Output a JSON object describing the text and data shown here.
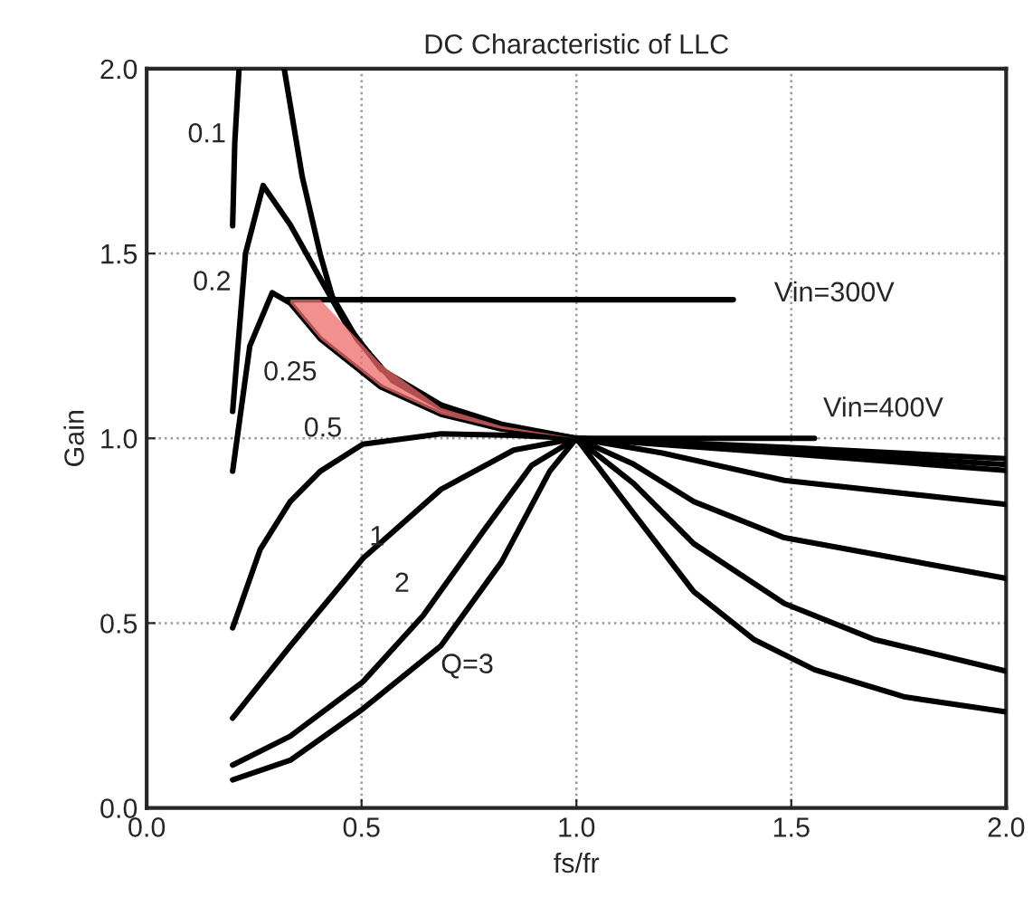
{
  "chart_data": {
    "type": "line",
    "title": "DC Characteristic of LLC",
    "xlabel": "fs/fr",
    "ylabel": "Gain",
    "xlim": [
      0,
      2
    ],
    "ylim": [
      0,
      2
    ],
    "xticks": [
      {
        "value": 0,
        "label": "0.0"
      },
      {
        "value": 0.5,
        "label": "0.5"
      },
      {
        "value": 1,
        "label": "1.0"
      },
      {
        "value": 1.5,
        "label": "1.5"
      },
      {
        "value": 2,
        "label": "2.0"
      }
    ],
    "yticks": [
      {
        "value": 0,
        "label": "0.0"
      },
      {
        "value": 0.5,
        "label": "0.5"
      },
      {
        "value": 1,
        "label": "1.0"
      },
      {
        "value": 1.5,
        "label": "1.5"
      },
      {
        "value": 2,
        "label": "2.0"
      }
    ],
    "grid": true,
    "series": [
      {
        "name": "0.1",
        "color": "#000000",
        "x": [
          0.2,
          0.205,
          0.215,
          0.26,
          0.32,
          0.362,
          0.404,
          0.432,
          0.489,
          0.573,
          0.685,
          0.826,
          1.0,
          1.5,
          2.0
        ],
        "values": [
          1.575,
          1.8,
          2.0,
          null,
          2.0,
          1.708,
          1.497,
          1.383,
          1.269,
          1.155,
          1.082,
          1.033,
          1.0,
          0.975,
          0.945
        ]
      },
      {
        "name": "0.2",
        "color": "#000000",
        "x": [
          0.2,
          0.23,
          0.271,
          0.334,
          0.404,
          0.46,
          0.545,
          0.685,
          0.826,
          1.0,
          1.5,
          2.0
        ],
        "values": [
          1.073,
          1.5,
          1.684,
          1.578,
          1.432,
          1.317,
          1.187,
          1.09,
          1.038,
          1.0,
          0.966,
          0.929
        ]
      },
      {
        "name": "0.25",
        "color": "#000000",
        "x": [
          0.2,
          0.24,
          0.292,
          0.334,
          0.404,
          0.545,
          0.685,
          0.826,
          1.0,
          1.5,
          2.0
        ],
        "values": [
          0.911,
          1.25,
          1.394,
          1.366,
          1.269,
          1.139,
          1.065,
          1.025,
          1.0,
          0.958,
          0.913
        ],
        "lower": [
          null,
          null,
          null,
          1.366,
          1.269,
          1.139,
          1.065,
          1.025,
          1.0,
          null,
          null
        ],
        "upper": [
          null,
          null,
          null,
          1.375,
          1.375,
          1.2,
          1.082,
          1.033,
          1.0,
          null,
          null
        ]
      },
      {
        "name": "0.5",
        "color": "#000000",
        "x": [
          0.2,
          0.264,
          0.334,
          0.404,
          0.503,
          0.685,
          0.854,
          1.0,
          1.2,
          1.484,
          2.0
        ],
        "values": [
          0.487,
          0.699,
          0.829,
          0.911,
          0.984,
          1.012,
          1.008,
          1.0,
          0.96,
          0.886,
          0.821
        ]
      },
      {
        "name": "1",
        "color": "#000000",
        "x": [
          0.2,
          0.334,
          0.503,
          0.685,
          0.854,
          1.0,
          1.133,
          1.273,
          1.484,
          2.0
        ],
        "values": [
          0.243,
          0.438,
          0.675,
          0.862,
          0.968,
          1.0,
          0.93,
          0.829,
          0.731,
          0.621
        ]
      },
      {
        "name": "2",
        "color": "#000000",
        "x": [
          0.2,
          0.334,
          0.503,
          0.643,
          0.783,
          0.896,
          1.0,
          1.133,
          1.273,
          1.484,
          1.695,
          2.0
        ],
        "values": [
          0.116,
          0.194,
          0.341,
          0.52,
          0.748,
          0.927,
          1.0,
          0.878,
          0.715,
          0.553,
          0.455,
          0.37
        ]
      },
      {
        "name": "Q=3",
        "color": "#000000",
        "x": [
          0.2,
          0.334,
          0.503,
          0.685,
          0.826,
          0.938,
          1.0,
          1.133,
          1.273,
          1.414,
          1.554,
          1.765,
          2.0
        ],
        "values": [
          0.076,
          0.129,
          0.268,
          0.439,
          0.666,
          0.911,
          1.0,
          0.797,
          0.585,
          0.455,
          0.374,
          0.3,
          0.26
        ]
      },
      {
        "name": "Vin=300V",
        "color": "#000000",
        "x": [
          0.327,
          1.365
        ],
        "values": [
          1.375,
          1.375
        ]
      },
      {
        "name": "Vin=400V",
        "color": "#000000",
        "x": [
          1.0,
          1.554
        ],
        "values": [
          1.0,
          1.0
        ]
      }
    ]
  }
}
